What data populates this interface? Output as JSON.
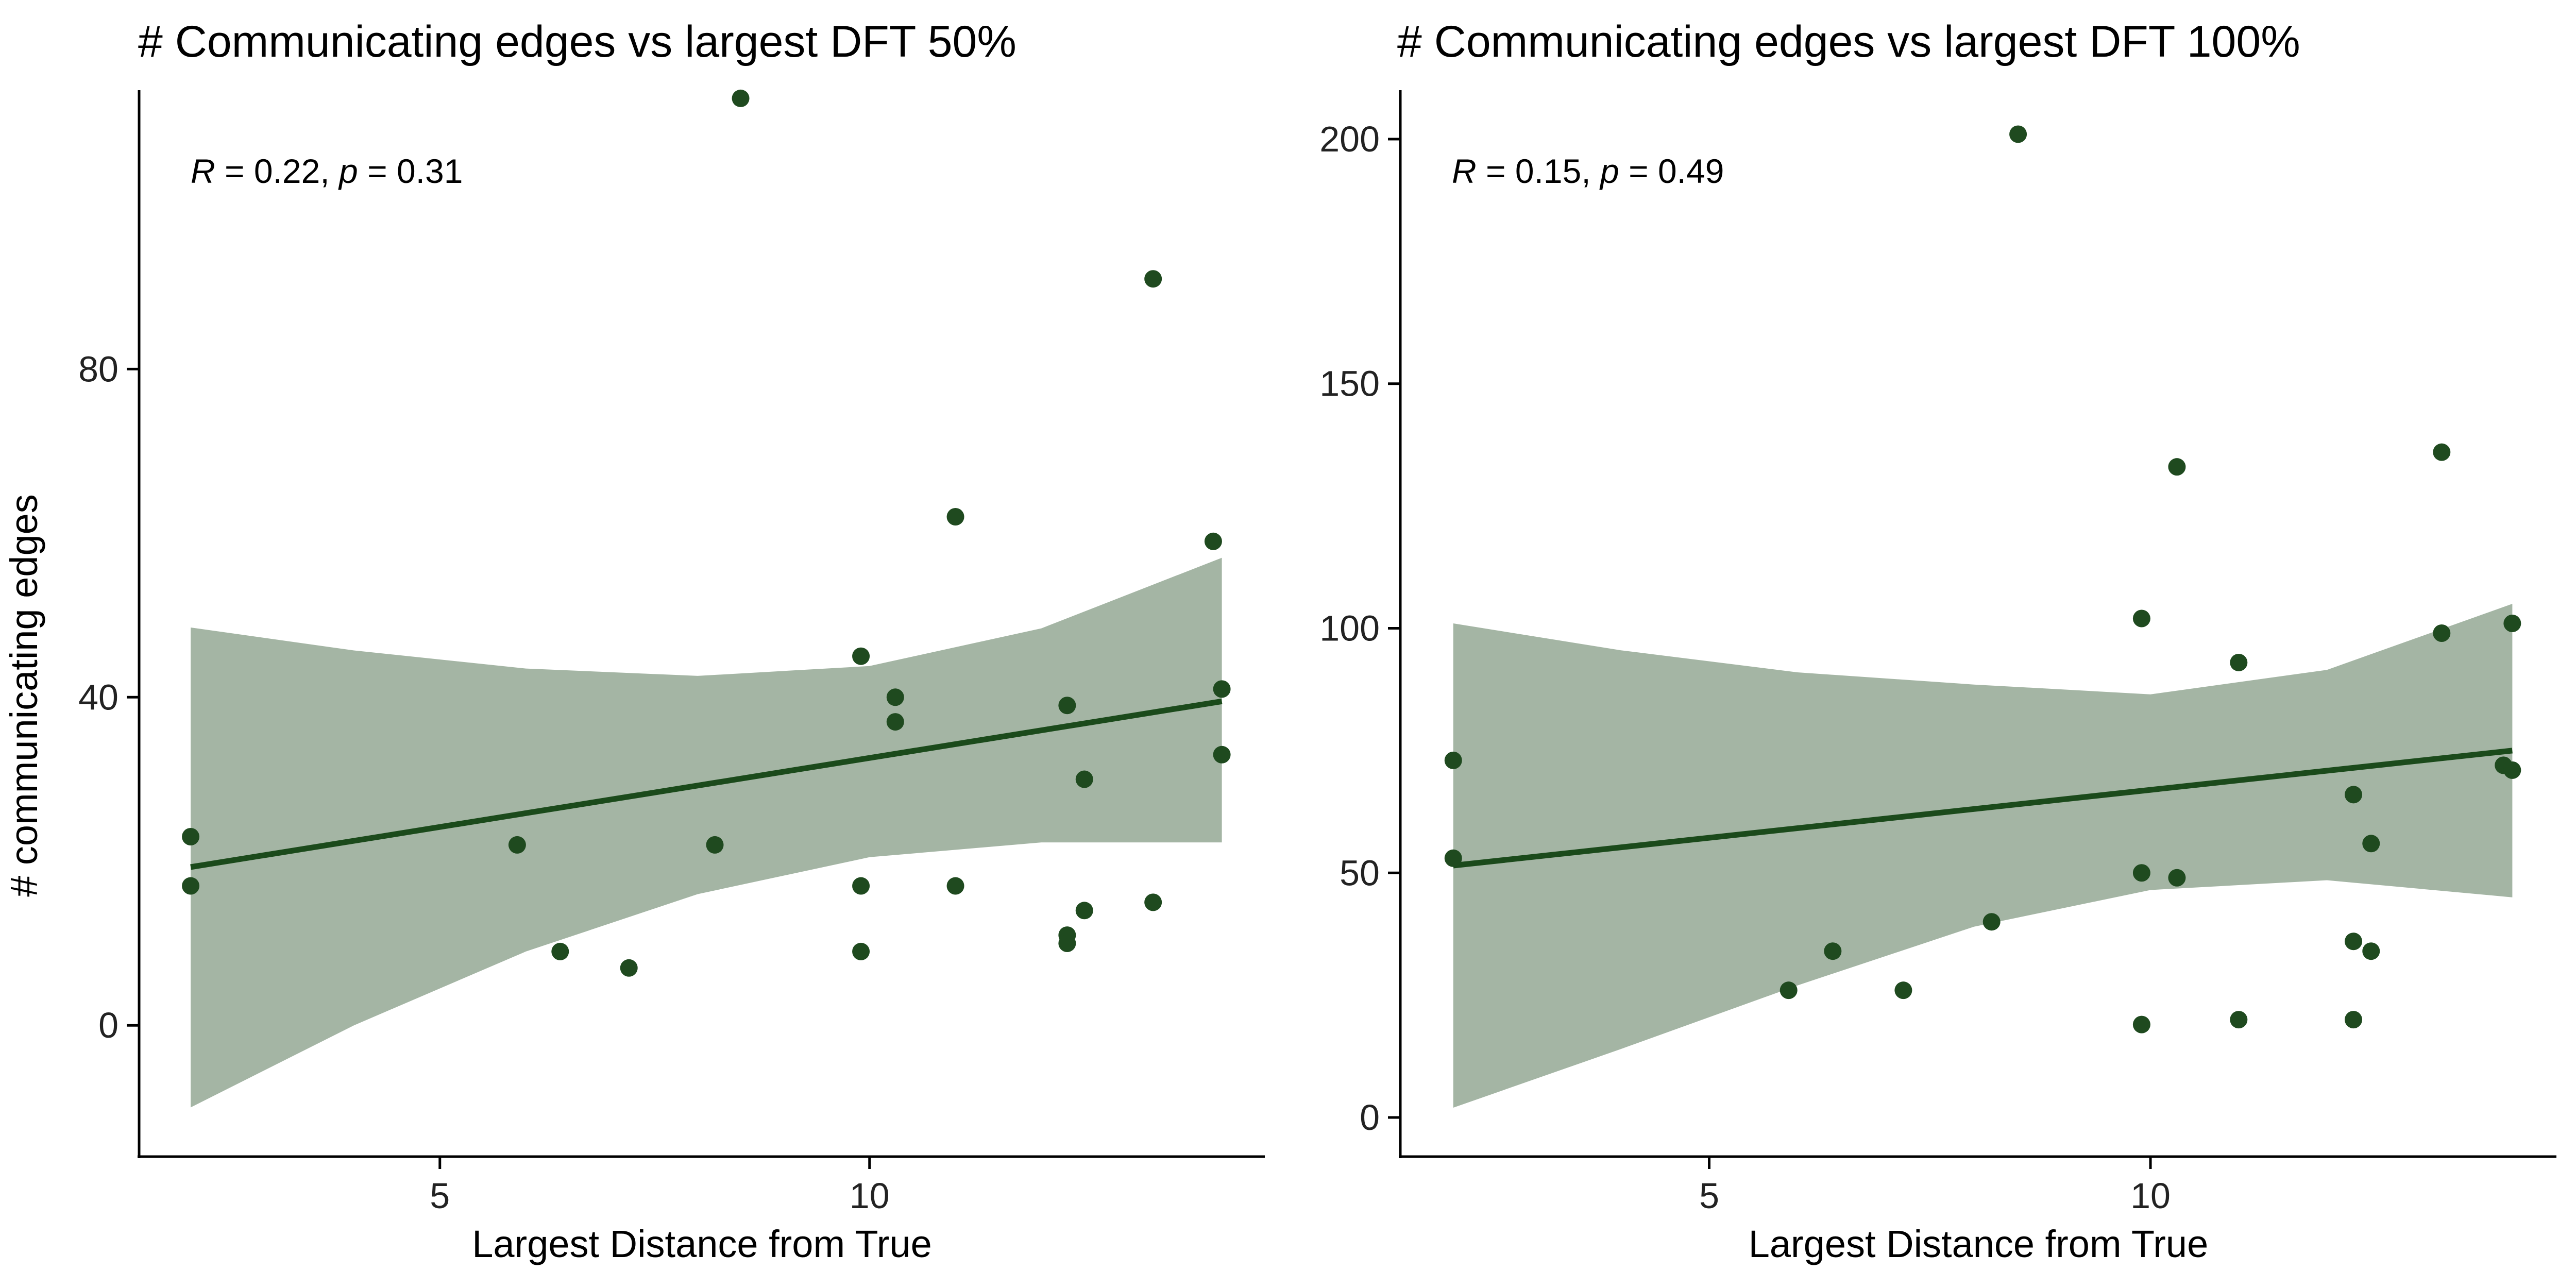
{
  "colors": {
    "point": "#1f4a1f",
    "line": "#1b4a1b",
    "band": "#a4b5a4",
    "axis": "#000000"
  },
  "chart_data": [
    {
      "type": "scatter",
      "title": "# Communicating edges vs largest DFT 50%",
      "xlabel": "Largest Distance from True",
      "ylabel": "# communicating edges",
      "xlim": [
        1.5,
        14.6
      ],
      "ylim": [
        -16,
        114
      ],
      "xticks": [
        5,
        10
      ],
      "yticks": [
        0,
        40,
        80
      ],
      "grid": false,
      "annotation": {
        "r_symbol": "R",
        "r_text": " = 0.22, ",
        "p_symbol": "p",
        "p_text": " = 0.31"
      },
      "points": [
        {
          "x": 2.1,
          "y": 23
        },
        {
          "x": 2.1,
          "y": 17
        },
        {
          "x": 5.9,
          "y": 22
        },
        {
          "x": 6.4,
          "y": 9
        },
        {
          "x": 7.2,
          "y": 7
        },
        {
          "x": 8.2,
          "y": 22
        },
        {
          "x": 8.5,
          "y": 113
        },
        {
          "x": 9.9,
          "y": 45
        },
        {
          "x": 9.9,
          "y": 17
        },
        {
          "x": 9.9,
          "y": 9
        },
        {
          "x": 10.3,
          "y": 40
        },
        {
          "x": 10.3,
          "y": 37
        },
        {
          "x": 11.0,
          "y": 62
        },
        {
          "x": 11.0,
          "y": 17
        },
        {
          "x": 12.3,
          "y": 39
        },
        {
          "x": 12.3,
          "y": 11
        },
        {
          "x": 12.3,
          "y": 10
        },
        {
          "x": 12.5,
          "y": 30
        },
        {
          "x": 12.5,
          "y": 14
        },
        {
          "x": 13.3,
          "y": 91
        },
        {
          "x": 13.3,
          "y": 15
        },
        {
          "x": 14.0,
          "y": 59
        },
        {
          "x": 14.1,
          "y": 41
        },
        {
          "x": 14.1,
          "y": 33
        }
      ],
      "fit": {
        "x": [
          2.1,
          14.1
        ],
        "y": [
          19.3,
          39.5
        ]
      },
      "ci_band": [
        {
          "x": 2.1,
          "lo": -10,
          "hi": 48.5
        },
        {
          "x": 4.0,
          "lo": 0,
          "hi": 45.7
        },
        {
          "x": 6.0,
          "lo": 9,
          "hi": 43.5
        },
        {
          "x": 8.0,
          "lo": 16,
          "hi": 42.6
        },
        {
          "x": 10.0,
          "lo": 20.5,
          "hi": 43.8
        },
        {
          "x": 12.0,
          "lo": 22.3,
          "hi": 48.4
        },
        {
          "x": 14.1,
          "lo": 22.3,
          "hi": 57
        }
      ]
    },
    {
      "type": "scatter",
      "title": "# Communicating edges vs largest DFT 100%",
      "xlabel": "Largest Distance from True",
      "ylabel": "",
      "xlim": [
        1.5,
        14.6
      ],
      "ylim": [
        -8,
        210
      ],
      "xticks": [
        5,
        10
      ],
      "yticks": [
        0,
        50,
        100,
        150,
        200
      ],
      "grid": false,
      "annotation": {
        "r_symbol": "R",
        "r_text": " = 0.15, ",
        "p_symbol": "p",
        "p_text": " = 0.49"
      },
      "points": [
        {
          "x": 2.1,
          "y": 73
        },
        {
          "x": 2.1,
          "y": 53
        },
        {
          "x": 5.9,
          "y": 26
        },
        {
          "x": 6.4,
          "y": 34
        },
        {
          "x": 7.2,
          "y": 26
        },
        {
          "x": 8.2,
          "y": 40
        },
        {
          "x": 8.5,
          "y": 201
        },
        {
          "x": 9.9,
          "y": 102
        },
        {
          "x": 9.9,
          "y": 50
        },
        {
          "x": 9.9,
          "y": 19
        },
        {
          "x": 10.3,
          "y": 133
        },
        {
          "x": 10.3,
          "y": 49
        },
        {
          "x": 11.0,
          "y": 93
        },
        {
          "x": 11.0,
          "y": 20
        },
        {
          "x": 12.3,
          "y": 66
        },
        {
          "x": 12.3,
          "y": 36
        },
        {
          "x": 12.3,
          "y": 20
        },
        {
          "x": 12.5,
          "y": 56
        },
        {
          "x": 12.5,
          "y": 34
        },
        {
          "x": 13.3,
          "y": 136
        },
        {
          "x": 13.3,
          "y": 99
        },
        {
          "x": 14.0,
          "y": 72
        },
        {
          "x": 14.1,
          "y": 101
        },
        {
          "x": 14.1,
          "y": 71
        }
      ],
      "fit": {
        "x": [
          2.1,
          14.1
        ],
        "y": [
          51.5,
          75
        ]
      },
      "ci_band": [
        {
          "x": 2.1,
          "lo": 2,
          "hi": 101
        },
        {
          "x": 4.0,
          "lo": 14,
          "hi": 95.5
        },
        {
          "x": 6.0,
          "lo": 27,
          "hi": 91
        },
        {
          "x": 8.0,
          "lo": 39,
          "hi": 88.5
        },
        {
          "x": 10.0,
          "lo": 46.5,
          "hi": 86.5
        },
        {
          "x": 12.0,
          "lo": 48.5,
          "hi": 91.5
        },
        {
          "x": 14.1,
          "lo": 45,
          "hi": 105
        }
      ]
    }
  ]
}
